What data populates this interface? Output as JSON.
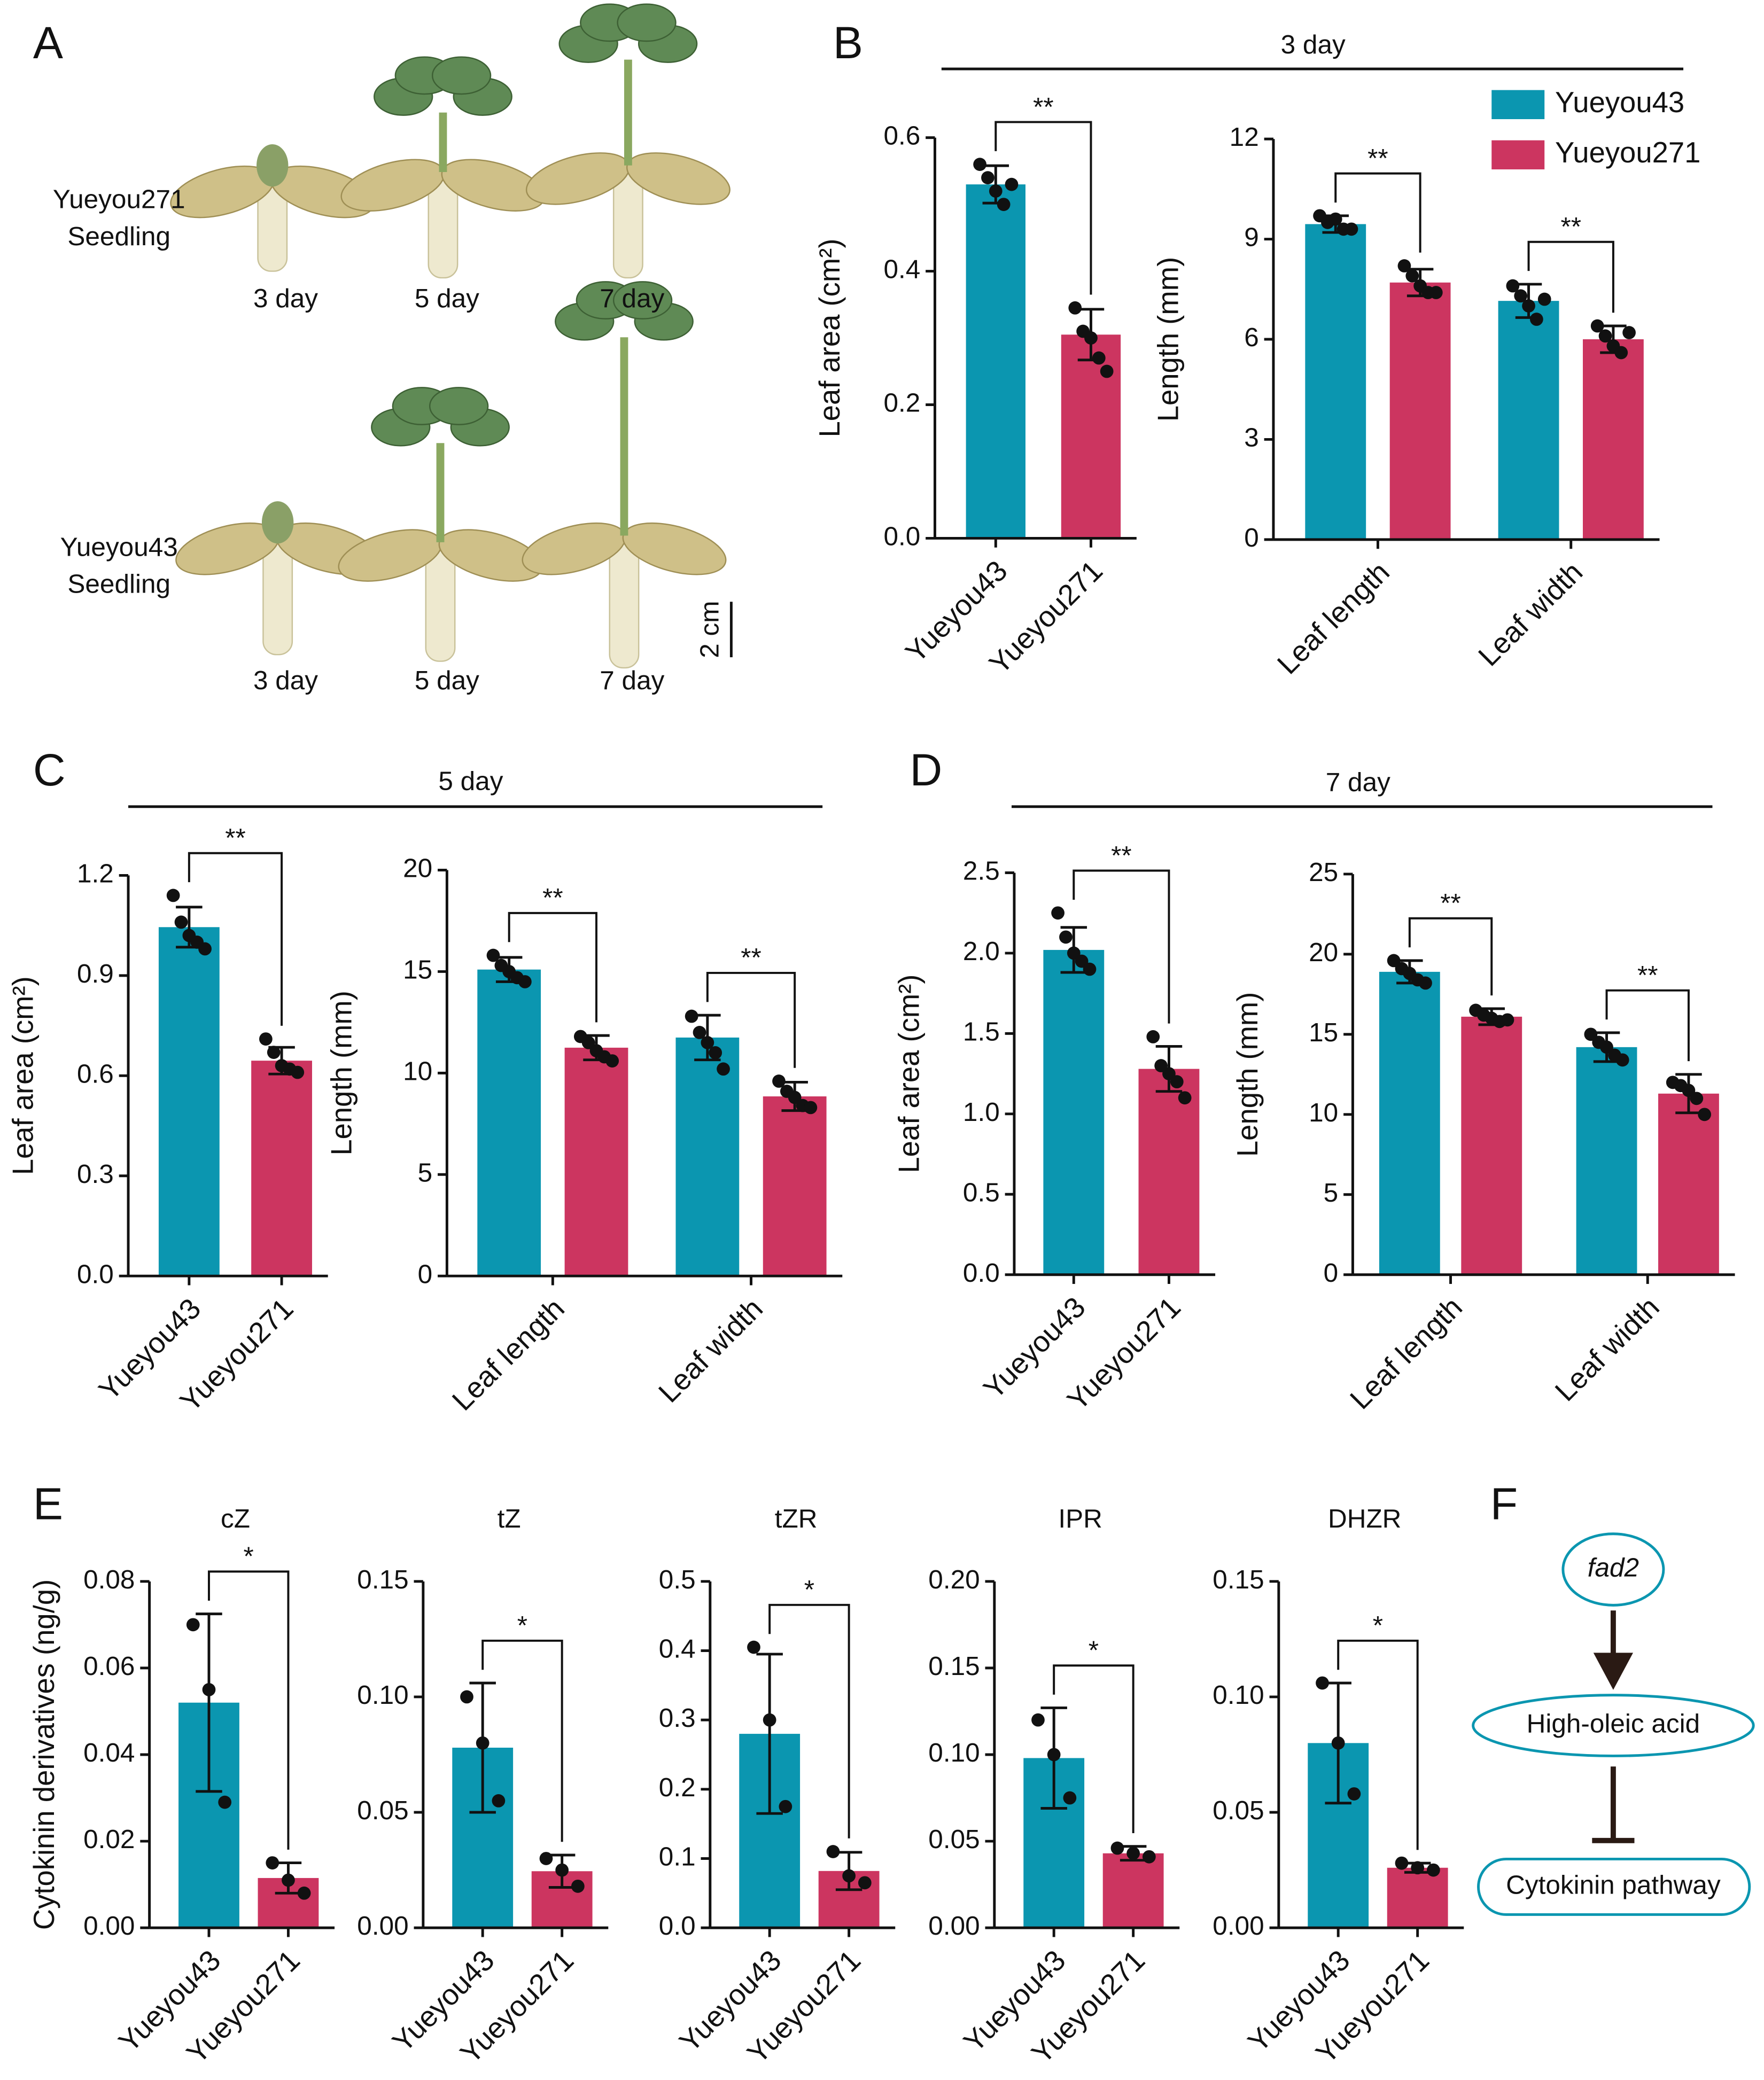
{
  "panel_labels": [
    "A",
    "B",
    "C",
    "D",
    "E",
    "F"
  ],
  "group_titles": [
    "3 day",
    "5 day",
    "7 day"
  ],
  "photo": {
    "rows": [
      {
        "label": [
          "Yueyou271",
          "Seedling"
        ],
        "days": [
          "3 day",
          "5 day",
          "7 day"
        ]
      },
      {
        "label": [
          "Yueyou43",
          "Seedling"
        ],
        "days": [
          "3 day",
          "5 day",
          "7 day"
        ]
      }
    ],
    "scale": "2 cm"
  },
  "chart_data": [
    {
      "type": "bar",
      "ylabel": "Leaf area (cm²)",
      "categories": [
        "Yueyou43",
        "Yueyou271"
      ],
      "colors": [
        "#0b96b0",
        "#cc3560"
      ],
      "values": [
        0.53,
        0.305
      ],
      "errors": [
        0.028,
        0.038
      ],
      "points": [
        [
          0.56,
          0.54,
          0.52,
          0.5,
          0.53
        ],
        [
          0.345,
          0.31,
          0.3,
          0.27,
          0.25
        ]
      ],
      "significance": [
        "**"
      ],
      "ylim": [
        0,
        0.6
      ],
      "yticks": [
        {
          "value": 0,
          "label": "0.0"
        },
        0.2,
        0.4,
        0.6
      ]
    },
    {
      "type": "bar",
      "ylabel": "Length (mm)",
      "categories": [
        "Leaf length",
        "Leaf width"
      ],
      "legend": "top-right",
      "series": [
        {
          "name": "Yueyou43",
          "color": "#0b96b0",
          "values": [
            9.45,
            7.15
          ],
          "errors": [
            0.25,
            0.5
          ],
          "points": [
            [
              9.7,
              9.5,
              9.6,
              9.3,
              9.3
            ],
            [
              7.6,
              7.3,
              7.0,
              6.6,
              7.2
            ]
          ]
        },
        {
          "name": "Yueyou271",
          "color": "#cc3560",
          "values": [
            7.7,
            6.0
          ],
          "errors": [
            0.4,
            0.4
          ],
          "points": [
            [
              8.2,
              7.9,
              7.6,
              7.4,
              7.4
            ],
            [
              6.4,
              6.1,
              5.8,
              5.6,
              6.2
            ]
          ]
        }
      ],
      "significance": [
        "**",
        "**"
      ],
      "ylim": [
        0,
        12
      ],
      "yticks": [
        0,
        3,
        6,
        9,
        12
      ]
    },
    {
      "type": "bar",
      "ylabel": "Leaf area (cm²)",
      "categories": [
        "Yueyou43",
        "Yueyou271"
      ],
      "colors": [
        "#0b96b0",
        "#cc3560"
      ],
      "values": [
        1.045,
        0.645
      ],
      "errors": [
        0.06,
        0.04
      ],
      "points": [
        [
          1.14,
          1.06,
          1.02,
          1.0,
          0.98
        ],
        [
          0.71,
          0.67,
          0.63,
          0.62,
          0.61
        ]
      ],
      "significance": [
        "**"
      ],
      "ylim": [
        0,
        1.2
      ],
      "yticks": [
        {
          "value": 0,
          "label": "0.0"
        },
        0.3,
        0.6,
        0.9,
        1.2
      ]
    },
    {
      "type": "bar",
      "ylabel": "Length (mm)",
      "categories": [
        "Leaf length",
        "Leaf width"
      ],
      "series": [
        {
          "color": "#0b96b0",
          "values": [
            15.1,
            11.75
          ],
          "errors": [
            0.6,
            1.1
          ],
          "points": [
            [
              15.8,
              15.3,
              15.0,
              14.7,
              14.5
            ],
            [
              12.8,
              12.0,
              11.5,
              11.0,
              10.2
            ]
          ]
        },
        {
          "color": "#cc3560",
          "values": [
            11.25,
            8.85
          ],
          "errors": [
            0.6,
            0.7
          ],
          "points": [
            [
              11.8,
              11.5,
              11.1,
              10.8,
              10.6
            ],
            [
              9.6,
              9.1,
              8.8,
              8.4,
              8.3
            ]
          ]
        }
      ],
      "significance": [
        "**",
        "**"
      ],
      "ylim": [
        0,
        20
      ],
      "yticks": [
        0,
        5,
        10,
        15,
        20
      ]
    },
    {
      "type": "bar",
      "ylabel": "Leaf area (cm²)",
      "categories": [
        "Yueyou43",
        "Yueyou271"
      ],
      "colors": [
        "#0b96b0",
        "#cc3560"
      ],
      "values": [
        2.02,
        1.28
      ],
      "errors": [
        0.14,
        0.14
      ],
      "points": [
        [
          2.25,
          2.1,
          2.0,
          1.95,
          1.9
        ],
        [
          1.48,
          1.3,
          1.25,
          1.2,
          1.1
        ]
      ],
      "significance": [
        "**"
      ],
      "ylim": [
        0,
        2.5
      ],
      "yticks": [
        {
          "value": 0,
          "label": "0.0"
        },
        0.5,
        {
          "value": 1,
          "label": "1.0"
        },
        1.5,
        {
          "value": 2,
          "label": "2.0"
        },
        2.5
      ]
    },
    {
      "type": "bar",
      "ylabel": "Length (mm)",
      "categories": [
        "Leaf length",
        "Leaf width"
      ],
      "series": [
        {
          "color": "#0b96b0",
          "values": [
            18.9,
            14.2
          ],
          "errors": [
            0.7,
            0.9
          ],
          "points": [
            [
              19.6,
              19.1,
              18.8,
              18.4,
              18.2
            ],
            [
              15.0,
              14.5,
              14.2,
              13.7,
              13.4
            ]
          ]
        },
        {
          "color": "#cc3560",
          "values": [
            16.1,
            11.3
          ],
          "errors": [
            0.5,
            1.2
          ],
          "points": [
            [
              16.5,
              16.2,
              16.0,
              15.8,
              15.9
            ],
            [
              12.0,
              11.8,
              11.5,
              11.0,
              10.0
            ]
          ]
        }
      ],
      "significance": [
        "**",
        "**"
      ],
      "ylim": [
        0,
        25
      ],
      "yticks": [
        0,
        5,
        10,
        15,
        20,
        25
      ]
    },
    {
      "type": "bar",
      "title": "cZ",
      "ylabel": "Cytokinin derivatives (ng/g)",
      "categories": [
        "Yueyou43",
        "Yueyou271"
      ],
      "colors": [
        "#0b96b0",
        "#cc3560"
      ],
      "values": [
        0.052,
        0.0115
      ],
      "errors": [
        0.0205,
        0.0035
      ],
      "points": [
        [
          0.07,
          0.055,
          0.029
        ],
        [
          0.015,
          0.011,
          0.008
        ]
      ],
      "significance": [
        "*"
      ],
      "ylim": [
        0,
        0.08
      ],
      "yticks": [
        {
          "value": 0,
          "label": "0.00"
        },
        0.02,
        0.04,
        0.06,
        0.08
      ]
    },
    {
      "type": "bar",
      "title": "tZ",
      "categories": [
        "Yueyou43",
        "Yueyou271"
      ],
      "colors": [
        "#0b96b0",
        "#cc3560"
      ],
      "values": [
        0.078,
        0.0245
      ],
      "errors": [
        0.028,
        0.007
      ],
      "points": [
        [
          0.1,
          0.08,
          0.055
        ],
        [
          0.03,
          0.025,
          0.018
        ]
      ],
      "significance": [
        "*"
      ],
      "ylim": [
        0,
        0.15
      ],
      "yticks": [
        {
          "value": 0,
          "label": "0.00"
        },
        0.05,
        {
          "value": 0.1,
          "label": "0.10"
        },
        0.15
      ]
    },
    {
      "type": "bar",
      "title": "tZR",
      "categories": [
        "Yueyou43",
        "Yueyou271"
      ],
      "colors": [
        "#0b96b0",
        "#cc3560"
      ],
      "values": [
        0.28,
        0.082
      ],
      "errors": [
        0.115,
        0.027
      ],
      "points": [
        [
          0.405,
          0.3,
          0.175
        ],
        [
          0.11,
          0.075,
          0.065
        ]
      ],
      "significance": [
        "*"
      ],
      "ylim": [
        0,
        0.5
      ],
      "yticks": [
        {
          "value": 0,
          "label": "0.0"
        },
        0.1,
        0.2,
        0.3,
        0.4,
        0.5
      ]
    },
    {
      "type": "bar",
      "title": "IPR",
      "categories": [
        "Yueyou43",
        "Yueyou271"
      ],
      "colors": [
        "#0b96b0",
        "#cc3560"
      ],
      "values": [
        0.098,
        0.043
      ],
      "errors": [
        0.029,
        0.004
      ],
      "points": [
        [
          0.12,
          0.1,
          0.075
        ],
        [
          0.046,
          0.043,
          0.041
        ]
      ],
      "significance": [
        "*"
      ],
      "ylim": [
        0,
        0.2
      ],
      "yticks": [
        {
          "value": 0,
          "label": "0.00"
        },
        0.05,
        {
          "value": 0.1,
          "label": "0.10"
        },
        0.15,
        {
          "value": 0.2,
          "label": "0.20"
        }
      ]
    },
    {
      "type": "bar",
      "title": "DHZR",
      "categories": [
        "Yueyou43",
        "Yueyou271"
      ],
      "colors": [
        "#0b96b0",
        "#cc3560"
      ],
      "values": [
        0.08,
        0.026
      ],
      "errors": [
        0.026,
        0.002
      ],
      "points": [
        [
          0.106,
          0.08,
          0.058
        ],
        [
          0.028,
          0.026,
          0.025
        ]
      ],
      "significance": [
        "*"
      ],
      "ylim": [
        0,
        0.15
      ],
      "yticks": [
        {
          "value": 0,
          "label": "0.00"
        },
        0.05,
        {
          "value": 0.1,
          "label": "0.10"
        },
        0.15
      ]
    }
  ],
  "diagram": {
    "nodes": [
      "fad2",
      "High-oleic acid",
      "Cytokinin pathway"
    ]
  }
}
